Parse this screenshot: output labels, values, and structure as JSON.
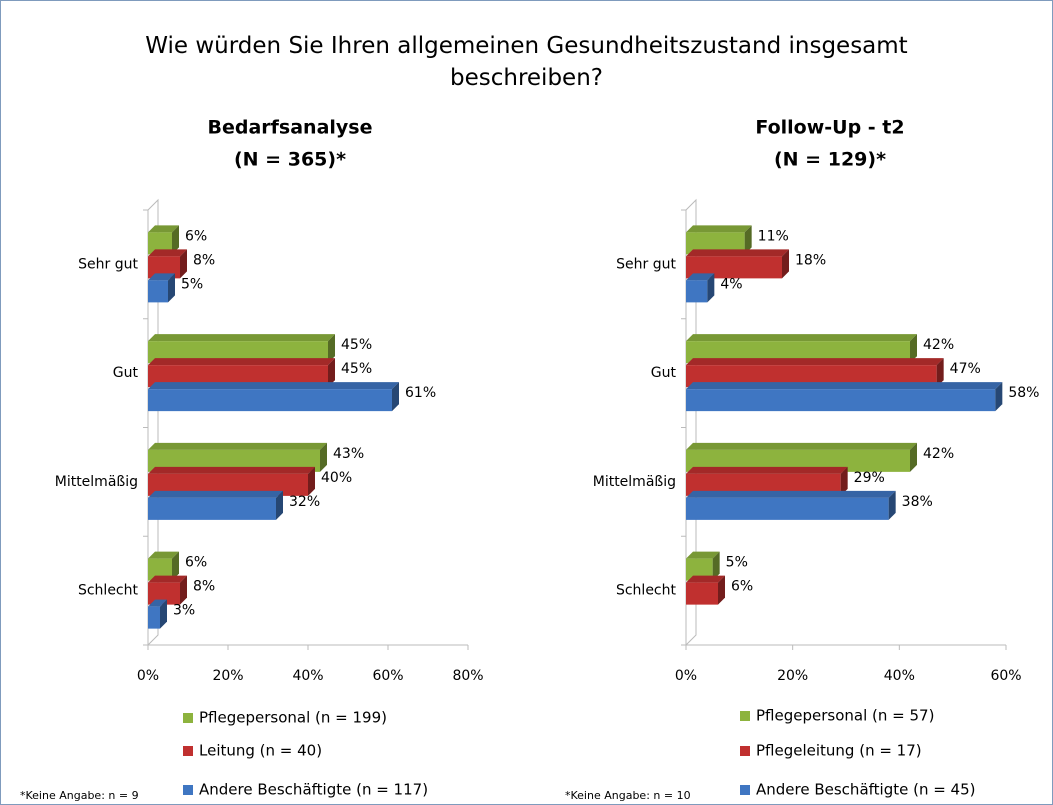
{
  "title": "Wie würden Sie Ihren allgemeinen Gesundheitszustand insgesamt beschreiben?",
  "chart_data": [
    {
      "type": "bar",
      "orientation": "horizontal",
      "title": [
        "Bedarfsanalyse",
        "(N = 365)*"
      ],
      "categories": [
        "Sehr gut",
        "Gut",
        "Mittelmäßig",
        "Schlecht"
      ],
      "series": [
        {
          "name": "Pflegepersonal (n = 199)",
          "color": "#8db33e",
          "values": [
            6,
            45,
            43,
            6
          ],
          "value_labels": [
            "6%",
            "45%",
            "43%",
            "6%"
          ]
        },
        {
          "name": "Leitung (n = 40)",
          "color": "#c0302f",
          "values": [
            8,
            45,
            40,
            8
          ],
          "value_labels": [
            "8%",
            "45%",
            "40%",
            "8%"
          ]
        },
        {
          "name": "Andere Beschäftigte (n = 117)",
          "color": "#3f76c2",
          "values": [
            5,
            61,
            32,
            3
          ],
          "value_labels": [
            "5%",
            "61%",
            "32%",
            "3%"
          ]
        }
      ],
      "xlim": [
        0,
        80
      ],
      "xticks": [
        {
          "value": 0,
          "label": "0%"
        },
        {
          "value": 20,
          "label": "20%"
        },
        {
          "value": 40,
          "label": "40%"
        },
        {
          "value": 60,
          "label": "60%"
        },
        {
          "value": 80,
          "label": "80%"
        }
      ],
      "note": "*Keine Angabe: n = 9"
    },
    {
      "type": "bar",
      "orientation": "horizontal",
      "title": [
        "Follow-Up - t2",
        "(N = 129)*"
      ],
      "categories": [
        "Sehr gut",
        "Gut",
        "Mittelmäßig",
        "Schlecht"
      ],
      "series": [
        {
          "name": "Pflegepersonal (n = 57)",
          "color": "#8db33e",
          "values": [
            11,
            42,
            42,
            5
          ],
          "value_labels": [
            "11%",
            "42%",
            "42%",
            "5%"
          ]
        },
        {
          "name": "Pflegeleitung (n = 17)",
          "color": "#c0302f",
          "values": [
            18,
            47,
            29,
            6
          ],
          "value_labels": [
            "18%",
            "47%",
            "29%",
            "6%"
          ]
        },
        {
          "name": "Andere Beschäftigte (n = 45)",
          "color": "#3f76c2",
          "values": [
            4,
            58,
            38,
            null
          ],
          "value_labels": [
            "4%",
            "58%",
            "38%",
            null
          ]
        }
      ],
      "xlim": [
        0,
        60
      ],
      "xticks": [
        {
          "value": 0,
          "label": "0%"
        },
        {
          "value": 20,
          "label": "20%"
        },
        {
          "value": 40,
          "label": "40%"
        },
        {
          "value": 60,
          "label": "60%"
        }
      ],
      "note": "*Keine Angabe: n = 10"
    }
  ]
}
